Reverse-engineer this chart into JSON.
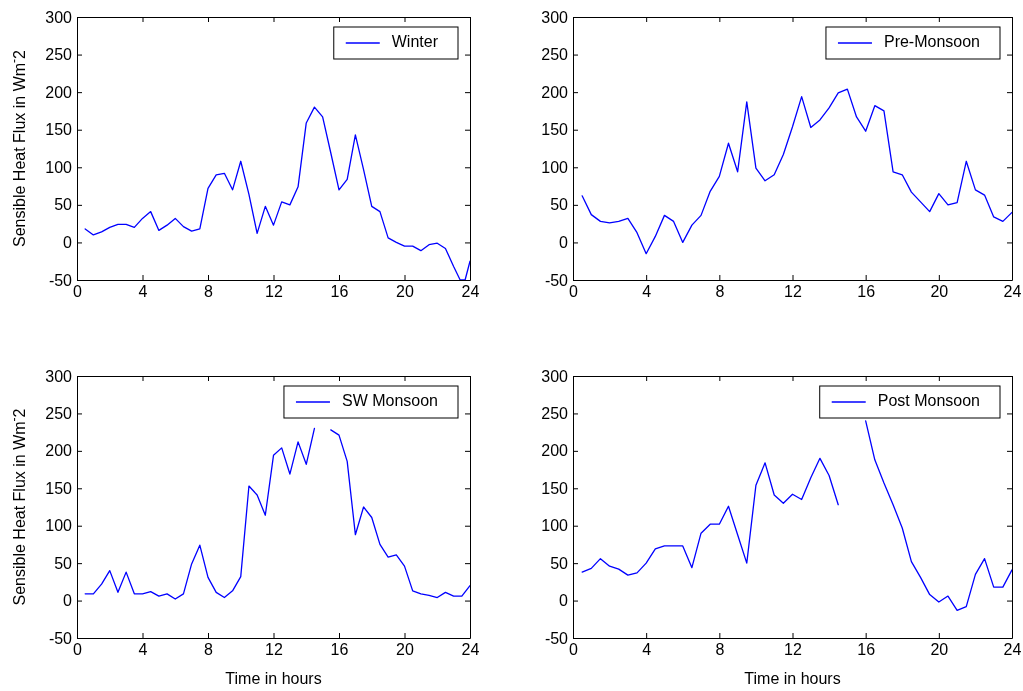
{
  "chart_data": [
    {
      "type": "line",
      "ylabel": "Sensible Heat Flux in Wm$^{-}$2",
      "legend": "top right",
      "marker": "none",
      "line_style": "solid",
      "xlim": [
        0,
        24
      ],
      "xticks": [
        0,
        4,
        8,
        12,
        16,
        20,
        24
      ],
      "ylim": [
        -50,
        300
      ],
      "yticks": [
        -50,
        0,
        50,
        100,
        150,
        200,
        250,
        300
      ],
      "series": [
        {
          "name": "Winter",
          "color": "#0000ff",
          "x": [
            0.5,
            1,
            1.5,
            2,
            2.5,
            3,
            3.5,
            4,
            4.5,
            5,
            5.5,
            6,
            6.5,
            7,
            7.5,
            8,
            8.5,
            9,
            9.5,
            10,
            10.5,
            11,
            11.5,
            12,
            12.5,
            13,
            13.5,
            14,
            14.5,
            15,
            15.5,
            16,
            16.5,
            17,
            17.5,
            18,
            18.5,
            19,
            19.5,
            20,
            20.5,
            21,
            21.5,
            22,
            22.5,
            23,
            23.4,
            23.7,
            24
          ],
          "values": [
            18,
            10,
            14,
            20,
            24,
            24,
            20,
            32,
            41,
            16,
            23,
            32,
            21,
            15,
            18,
            72,
            90,
            92,
            70,
            108,
            64,
            12,
            48,
            23,
            54,
            50,
            74,
            159,
            180,
            167,
            119,
            70,
            84,
            143,
            97,
            48,
            41,
            6,
            0,
            -5,
            -5,
            -11,
            -3,
            -1,
            -8,
            -32,
            -50,
            -50,
            -25
          ]
        }
      ]
    },
    {
      "type": "line",
      "legend": "top right",
      "marker": "none",
      "line_style": "solid",
      "x": [
        0.5,
        1,
        1.5,
        2,
        2.5,
        3,
        3.5,
        4,
        4.5,
        5,
        5.5,
        6,
        6.5,
        7,
        7.5,
        8,
        8.5,
        9,
        9.5,
        10,
        10.5,
        11,
        11.5,
        12,
        12.5,
        13,
        13.5,
        14,
        14.5,
        15,
        15.5,
        16,
        16.5,
        17,
        17.5,
        18,
        18.5,
        19,
        19.5,
        20,
        20.5,
        21,
        21.5,
        22,
        22.5,
        23,
        23.5,
        24
      ],
      "xlim": [
        0,
        24
      ],
      "xticks": [
        0,
        4,
        8,
        12,
        16,
        20,
        24
      ],
      "ylim": [
        -50,
        300
      ],
      "yticks": [
        -50,
        0,
        50,
        100,
        150,
        200,
        250,
        300
      ],
      "series": [
        {
          "name": "Pre-Monsoon",
          "color": "#0000ff",
          "values": [
            62,
            37,
            28,
            26,
            28,
            32,
            13,
            -15,
            8,
            36,
            28,
            0,
            23,
            36,
            68,
            88,
            132,
            94,
            187,
            99,
            82,
            90,
            117,
            154,
            194,
            153,
            163,
            179,
            199,
            204,
            167,
            148,
            182,
            175,
            94,
            90,
            67,
            54,
            41,
            65,
            50,
            53,
            108,
            70,
            63,
            34,
            28,
            40
          ]
        }
      ]
    },
    {
      "type": "line",
      "ylabel": "Sensible Heat Flux in Wm$^{-}$2",
      "xlabel": "Time in hours",
      "legend": "top right",
      "marker": "none",
      "line_style": "solid",
      "x": [
        0.5,
        1,
        1.5,
        2,
        2.5,
        3,
        3.5,
        4,
        4.5,
        5,
        5.5,
        6,
        6.5,
        7,
        7.5,
        8,
        8.5,
        9,
        9.5,
        10,
        10.5,
        11,
        11.5,
        12,
        12.5,
        13,
        13.5,
        14,
        14.5,
        15,
        15.5,
        16,
        16.5,
        17,
        17.5,
        18,
        18.5,
        19,
        19.5,
        20,
        20.5,
        21,
        21.5,
        22,
        22.5,
        23,
        23.5,
        24
      ],
      "xlim": [
        0,
        24
      ],
      "xticks": [
        0,
        4,
        8,
        12,
        16,
        20,
        24
      ],
      "ylim": [
        -50,
        300
      ],
      "yticks": [
        -50,
        0,
        50,
        100,
        150,
        200,
        250,
        300
      ],
      "series": [
        {
          "name": "SW Monsoon",
          "color": "#0000ff",
          "values": [
            9,
            9,
            22,
            40,
            11,
            38,
            9,
            9,
            12,
            6,
            9,
            2,
            9,
            49,
            74,
            31,
            11,
            4,
            13,
            32,
            153,
            141,
            114,
            194,
            204,
            169,
            212,
            182,
            230,
            null,
            228,
            221,
            186,
            88,
            125,
            111,
            75,
            58,
            61,
            46,
            13,
            9,
            7,
            4,
            11,
            6,
            6,
            20
          ]
        }
      ]
    },
    {
      "type": "line",
      "xlabel": "Time in hours",
      "legend": "top right",
      "marker": "none",
      "line_style": "solid",
      "x": [
        0.5,
        1,
        1.5,
        2,
        2.5,
        3,
        3.5,
        4,
        4.5,
        5,
        5.5,
        6,
        6.5,
        7,
        7.5,
        8,
        8.5,
        9,
        9.5,
        10,
        10.5,
        11,
        11.5,
        12,
        12.5,
        13,
        13.5,
        14,
        14.5,
        15,
        15.5,
        16,
        16.5,
        17,
        17.5,
        18,
        18.5,
        19,
        19.5,
        20,
        20.5,
        21,
        21.5,
        22,
        22.5,
        23,
        23.5,
        24
      ],
      "xlim": [
        0,
        24
      ],
      "xticks": [
        0,
        4,
        8,
        12,
        16,
        20,
        24
      ],
      "ylim": [
        -50,
        300
      ],
      "yticks": [
        -50,
        0,
        50,
        100,
        150,
        200,
        250,
        300
      ],
      "series": [
        {
          "name": "Post Monsoon",
          "color": "#0000ff",
          "values": [
            38,
            43,
            56,
            46,
            42,
            34,
            37,
            50,
            69,
            73,
            73,
            73,
            44,
            90,
            102,
            102,
            126,
            88,
            50,
            154,
            184,
            141,
            130,
            142,
            135,
            164,
            190,
            167,
            128,
            null,
            null,
            240,
            188,
            157,
            128,
            97,
            52,
            31,
            8,
            -2,
            6,
            -13,
            -8,
            35,
            56,
            18,
            18,
            41
          ]
        }
      ]
    }
  ]
}
